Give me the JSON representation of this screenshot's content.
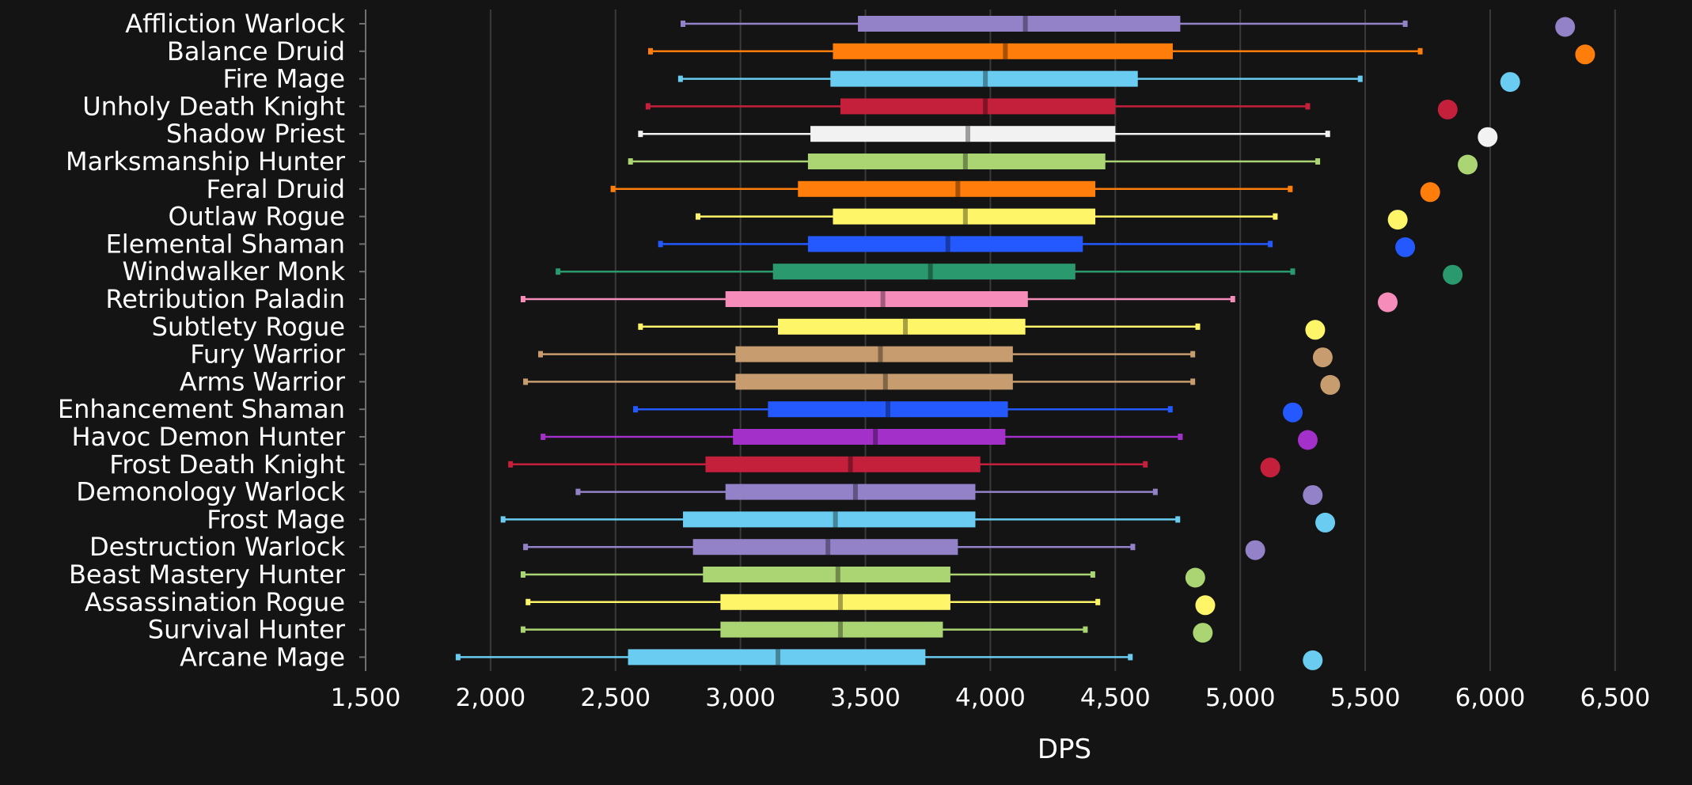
{
  "chart_data": {
    "type": "box",
    "orientation": "horizontal",
    "xlabel": "DPS",
    "ylabel": "",
    "xlim": [
      1500,
      6700
    ],
    "x_ticks": [
      1500,
      2000,
      2500,
      3000,
      3500,
      4000,
      4500,
      5000,
      5500,
      6000,
      6500
    ],
    "x_tick_labels": [
      "1,500",
      "2,000",
      "2,500",
      "3,000",
      "3,500",
      "4,000",
      "4,500",
      "5,000",
      "5,500",
      "6,000",
      "6,500"
    ],
    "grid": "vertical",
    "colors": {
      "background": "#141414",
      "grid": "#3a3a3a",
      "axis": "#6f6f6f",
      "text": "#ffffff"
    },
    "series": [
      {
        "name": "Affliction Warlock",
        "min": 2770,
        "q1": 3470,
        "median": 4140,
        "q3": 4760,
        "max": 5660,
        "outlier": 6300,
        "color": "#9482C9"
      },
      {
        "name": "Balance Druid",
        "min": 2640,
        "q1": 3370,
        "median": 4060,
        "q3": 4730,
        "max": 5720,
        "outlier": 6380,
        "color": "#FF7D0A"
      },
      {
        "name": "Fire Mage",
        "min": 2760,
        "q1": 3360,
        "median": 3980,
        "q3": 4590,
        "max": 5480,
        "outlier": 6080,
        "color": "#69CCF0"
      },
      {
        "name": "Unholy Death Knight",
        "min": 2630,
        "q1": 3400,
        "median": 3980,
        "q3": 4500,
        "max": 5270,
        "outlier": 5830,
        "color": "#C41F3B"
      },
      {
        "name": "Shadow Priest",
        "min": 2600,
        "q1": 3280,
        "median": 3910,
        "q3": 4500,
        "max": 5350,
        "outlier": 5990,
        "color": "#F2F2F2"
      },
      {
        "name": "Marksmanship Hunter",
        "min": 2560,
        "q1": 3270,
        "median": 3900,
        "q3": 4460,
        "max": 5310,
        "outlier": 5910,
        "color": "#ABD473"
      },
      {
        "name": "Feral Druid",
        "min": 2490,
        "q1": 3230,
        "median": 3870,
        "q3": 4420,
        "max": 5200,
        "outlier": 5760,
        "color": "#FF7D0A"
      },
      {
        "name": "Outlaw Rogue",
        "min": 2830,
        "q1": 3370,
        "median": 3900,
        "q3": 4420,
        "max": 5140,
        "outlier": 5630,
        "color": "#FFF569"
      },
      {
        "name": "Elemental Shaman",
        "min": 2680,
        "q1": 3270,
        "median": 3830,
        "q3": 4370,
        "max": 5120,
        "outlier": 5660,
        "color": "#2459FF"
      },
      {
        "name": "Windwalker Monk",
        "min": 2270,
        "q1": 3130,
        "median": 3760,
        "q3": 4340,
        "max": 5210,
        "outlier": 5850,
        "color": "#2A9A6E"
      },
      {
        "name": "Retribution Paladin",
        "min": 2130,
        "q1": 2940,
        "median": 3570,
        "q3": 4150,
        "max": 4970,
        "outlier": 5590,
        "color": "#F58CBA"
      },
      {
        "name": "Subtlety Rogue",
        "min": 2600,
        "q1": 3150,
        "median": 3660,
        "q3": 4140,
        "max": 4830,
        "outlier": 5300,
        "color": "#FFF569"
      },
      {
        "name": "Fury Warrior",
        "min": 2200,
        "q1": 2980,
        "median": 3560,
        "q3": 4090,
        "max": 4810,
        "outlier": 5330,
        "color": "#C79C6E"
      },
      {
        "name": "Arms Warrior",
        "min": 2140,
        "q1": 2980,
        "median": 3580,
        "q3": 4090,
        "max": 4810,
        "outlier": 5360,
        "color": "#C79C6E"
      },
      {
        "name": "Enhancement Shaman",
        "min": 2580,
        "q1": 3110,
        "median": 3590,
        "q3": 4070,
        "max": 4720,
        "outlier": 5210,
        "color": "#2459FF"
      },
      {
        "name": "Havoc Demon Hunter",
        "min": 2210,
        "q1": 2970,
        "median": 3540,
        "q3": 4060,
        "max": 4760,
        "outlier": 5270,
        "color": "#A330C9"
      },
      {
        "name": "Frost Death Knight",
        "min": 2080,
        "q1": 2860,
        "median": 3440,
        "q3": 3960,
        "max": 4620,
        "outlier": 5120,
        "color": "#C41F3B"
      },
      {
        "name": "Demonology Warlock",
        "min": 2350,
        "q1": 2940,
        "median": 3460,
        "q3": 3940,
        "max": 4660,
        "outlier": 5290,
        "color": "#9482C9"
      },
      {
        "name": "Frost Mage",
        "min": 2050,
        "q1": 2770,
        "median": 3380,
        "q3": 3940,
        "max": 4750,
        "outlier": 5340,
        "color": "#69CCF0"
      },
      {
        "name": "Destruction Warlock",
        "min": 2140,
        "q1": 2810,
        "median": 3350,
        "q3": 3870,
        "max": 4570,
        "outlier": 5060,
        "color": "#9482C9"
      },
      {
        "name": "Beast Mastery Hunter",
        "min": 2130,
        "q1": 2850,
        "median": 3390,
        "q3": 3840,
        "max": 4410,
        "outlier": 4820,
        "color": "#ABD473"
      },
      {
        "name": "Assassination Rogue",
        "min": 2150,
        "q1": 2920,
        "median": 3400,
        "q3": 3840,
        "max": 4430,
        "outlier": 4860,
        "color": "#FFF569"
      },
      {
        "name": "Survival Hunter",
        "min": 2130,
        "q1": 2920,
        "median": 3400,
        "q3": 3810,
        "max": 4380,
        "outlier": 4850,
        "color": "#ABD473"
      },
      {
        "name": "Arcane Mage",
        "min": 1870,
        "q1": 2550,
        "median": 3150,
        "q3": 3740,
        "max": 4560,
        "outlier": 5290,
        "color": "#69CCF0"
      }
    ]
  }
}
